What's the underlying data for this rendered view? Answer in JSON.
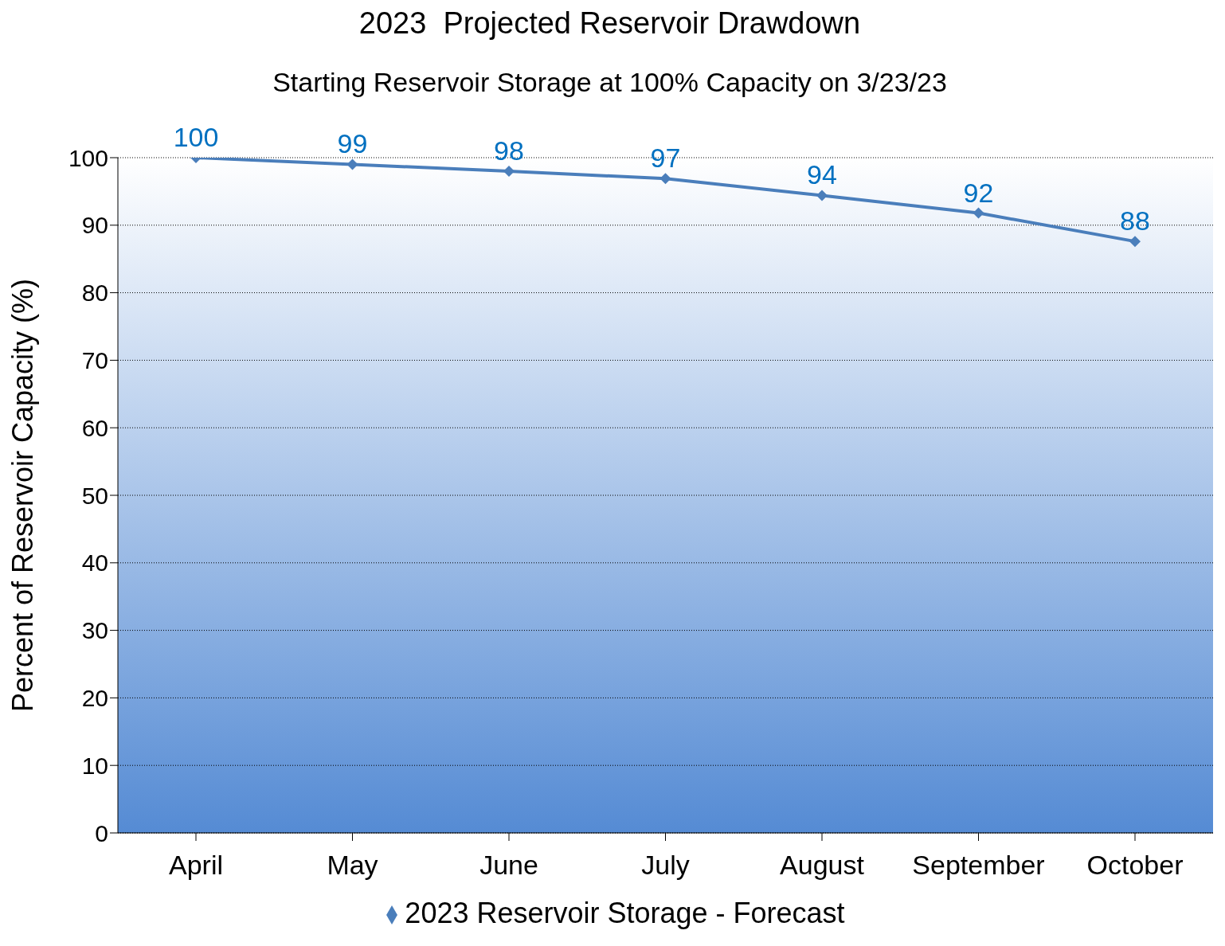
{
  "chart_data": {
    "type": "line",
    "title": "2023  Projected Reservoir Drawdown",
    "subtitle": "Starting Reservoir Storage at 100% Capacity on 3/23/23",
    "ylabel": "Percent of Reservoir Capacity (%)",
    "categories": [
      "April",
      "May",
      "June",
      "July",
      "August",
      "September",
      "October"
    ],
    "series": [
      {
        "name": "2023 Reservoir Storage - Forecast",
        "color": "#4a7ebb",
        "values": [
          100,
          99,
          98,
          96.9,
          94.4,
          91.8,
          87.6
        ],
        "value_labels": [
          "100",
          "99",
          "98",
          "97",
          "94",
          "92",
          "88"
        ]
      }
    ],
    "ylim": [
      0,
      100
    ],
    "yticks": [
      0,
      10,
      20,
      30,
      40,
      50,
      60,
      70,
      80,
      90,
      100
    ],
    "grid": "y",
    "legend": "bottom",
    "marker": "diamond",
    "line_style": "solid"
  }
}
